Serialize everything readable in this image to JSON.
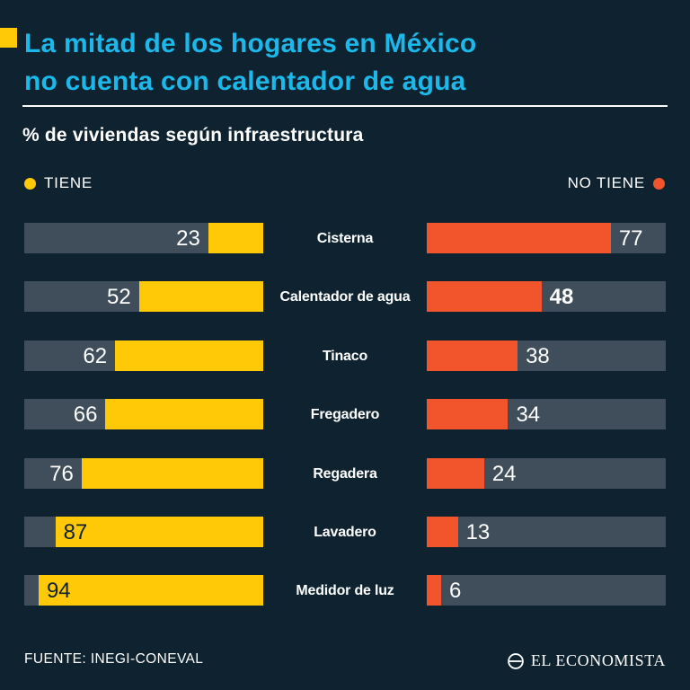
{
  "header": {
    "title_line1": "La mitad de los hogares en México",
    "title_line2": "no cuenta con calentador de agua",
    "subtitle": "% de viviendas según infraestructura"
  },
  "legend": {
    "tiene_label": "TIENE",
    "no_tiene_label": "NO TIENE"
  },
  "colors": {
    "background": "#0e2230",
    "title": "#1db8ea",
    "tiene": "#ffc907",
    "no_tiene": "#f2542b",
    "track": "#3f4e5a"
  },
  "chart_data": {
    "type": "bar",
    "orientation": "horizontal-diverging",
    "title": "La mitad de los hogares en México no cuenta con calentador de agua",
    "subtitle": "% de viviendas según infraestructura",
    "value_range": [
      0,
      100
    ],
    "categories": [
      "Cisterna",
      "Calentador de agua",
      "Tinaco",
      "Fregadero",
      "Regadera",
      "Lavadero",
      "Medidor de luz"
    ],
    "series": [
      {
        "name": "TIENE",
        "color": "#ffc907",
        "values": [
          23,
          52,
          62,
          66,
          76,
          87,
          94
        ]
      },
      {
        "name": "NO TIENE",
        "color": "#f2542b",
        "values": [
          77,
          48,
          38,
          34,
          24,
          13,
          6
        ]
      }
    ],
    "emphasized": {
      "category": "Calentador de agua",
      "series": "NO TIENE",
      "value": 48
    },
    "legend_position": "top"
  },
  "footer": {
    "source": "FUENTE: INEGI-CONEVAL",
    "brand": "EL ECONOMISTA"
  }
}
